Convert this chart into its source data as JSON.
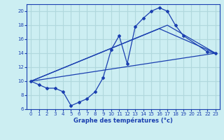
{
  "xlabel": "Graphe des températures (°c)",
  "bg_color": "#cceef2",
  "grid_color": "#b0d8dd",
  "line_color": "#1a3fb0",
  "xlim": [
    -0.5,
    23.5
  ],
  "ylim": [
    6,
    21
  ],
  "yticks": [
    6,
    8,
    10,
    12,
    14,
    16,
    18,
    20
  ],
  "xticks": [
    0,
    1,
    2,
    3,
    4,
    5,
    6,
    7,
    8,
    9,
    10,
    11,
    12,
    13,
    14,
    15,
    16,
    17,
    18,
    19,
    20,
    21,
    22,
    23
  ],
  "main_series": {
    "x": [
      0,
      1,
      2,
      3,
      4,
      5,
      6,
      7,
      8,
      9,
      10,
      11,
      12,
      13,
      14,
      15,
      16,
      17,
      18,
      19,
      22,
      23
    ],
    "y": [
      10,
      9.5,
      9.0,
      9.0,
      8.5,
      6.5,
      7.0,
      7.5,
      8.5,
      10.5,
      14.5,
      16.5,
      12.5,
      17.8,
      19.0,
      20.0,
      20.5,
      20.0,
      18.0,
      16.5,
      14.2,
      14.0
    ]
  },
  "straight_lines": [
    {
      "x": [
        0,
        23
      ],
      "y": [
        10,
        14
      ]
    },
    {
      "x": [
        0,
        16,
        23
      ],
      "y": [
        10,
        17.5,
        14
      ]
    },
    {
      "x": [
        0,
        17,
        23
      ],
      "y": [
        10,
        18.0,
        14
      ]
    }
  ]
}
